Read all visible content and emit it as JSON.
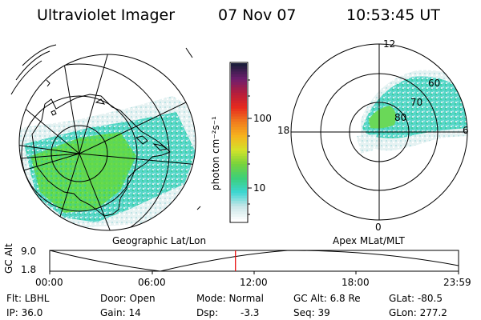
{
  "header": {
    "instrument": "Ultraviolet Imager",
    "date": "07 Nov 07",
    "time": "10:53:45 UT"
  },
  "geo_panel": {
    "title": "Geographic Lat/Lon",
    "colors": {
      "land_outline": "#000000",
      "grid": "#000000"
    }
  },
  "color_bar": {
    "label": "photon cm⁻²s⁻¹",
    "ticks": [
      "100",
      "10"
    ],
    "scale": "log",
    "colors": [
      "#ffffff",
      "#c8e6e8",
      "#3cd6d2",
      "#3ccf7a",
      "#78d23c",
      "#d4e22a",
      "#f6b21e",
      "#f07a1e",
      "#e62a1e",
      "#b41e3c",
      "#6e1e6e",
      "#1e1e3c"
    ]
  },
  "apex_panel": {
    "title": "Apex MLat/MLT",
    "mlt_labels": {
      "top": "12",
      "left": "18",
      "right": "6",
      "bottom": "0"
    },
    "mlat_labels": [
      "60",
      "70",
      "80"
    ]
  },
  "timeline": {
    "axis_label": "GC Alt",
    "y_ticks": [
      "9.0",
      "1.8"
    ],
    "x_ticks": [
      "00:00",
      "06:00",
      "12:00",
      "18:00",
      "23:59"
    ],
    "current_time_marker": "10:53:45",
    "marker_color": "#e81010"
  },
  "footer": {
    "flt": "Flt: LBHL",
    "ip": "IP: 36.0",
    "door": "Door: Open",
    "gain": "Gain: 14",
    "mode": "Mode: Normal",
    "dsp_label": "Dsp:",
    "dsp_value": "-3.3",
    "gc_alt": "GC Alt: 6.8 Re",
    "seq": "Seq: 39",
    "glat": "GLat: -80.5",
    "glon": "GLon: 277.2"
  }
}
